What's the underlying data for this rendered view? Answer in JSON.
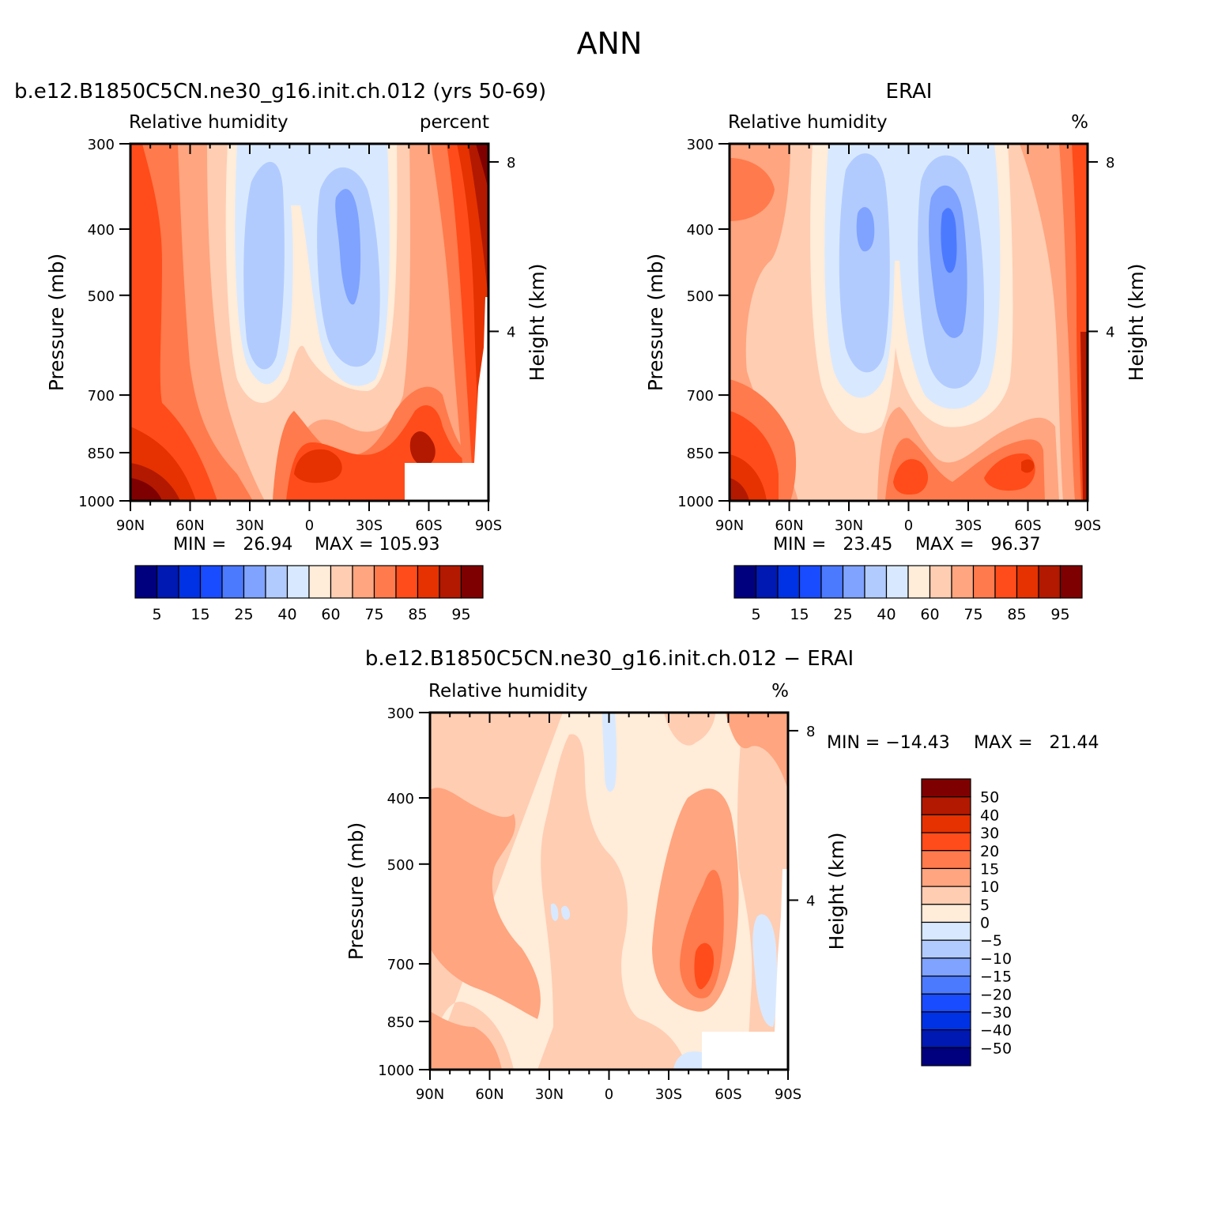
{
  "figure": {
    "title": "ANN"
  },
  "colors": {
    "rh_scale": [
      "#00007f",
      "#0019b2",
      "#0032e5",
      "#1a4cff",
      "#4c7aff",
      "#7fa3ff",
      "#b2cbff",
      "#d8e9ff",
      "#ffecd9",
      "#ffcdb2",
      "#ffa57f",
      "#ff7a4c",
      "#ff4c1a",
      "#e53200",
      "#b21900",
      "#7f0000"
    ],
    "diff_scale": [
      "#00007f",
      "#0019b2",
      "#0032e5",
      "#1a4cff",
      "#4c7aff",
      "#7fa3ff",
      "#b2cbff",
      "#d8e9ff",
      "#ffecd9",
      "#ffcdb2",
      "#ffa57f",
      "#ff7a4c",
      "#ff4c1a",
      "#e53200",
      "#b21900",
      "#7f0000"
    ]
  },
  "chart_data": [
    {
      "type": "heatmap",
      "title": "b.e12.B1850C5CN.ne30_g16.init.ch.012 (yrs 50-69)",
      "subtitle_left": "Relative humidity",
      "subtitle_right": "percent",
      "ylabel": "Pressure (mb)",
      "ylabel_right": "Height (km)",
      "x_ticks": [
        "90N",
        "60N",
        "30N",
        "0",
        "30S",
        "60S",
        "90S"
      ],
      "x_values": [
        90,
        60,
        30,
        0,
        -30,
        -60,
        -90
      ],
      "xlim": [
        90,
        -90
      ],
      "y_ticks": [
        "300",
        "400",
        "500",
        "700",
        "850",
        "1000"
      ],
      "y_values": [
        300,
        400,
        500,
        700,
        850,
        1000
      ],
      "ylim": [
        1000,
        300
      ],
      "y_scale": "log",
      "y_right_ticks": [
        "8",
        "4"
      ],
      "y_right_values": [
        8,
        4
      ],
      "min_text": "MIN =   26.94",
      "max_text": "MAX = 105.93",
      "min": 26.94,
      "max": 105.93,
      "colorbar_labels": [
        "5",
        "15",
        "25",
        "40",
        "60",
        "75",
        "85",
        "95"
      ],
      "contour_levels": [
        5,
        10,
        15,
        20,
        25,
        30,
        40,
        50,
        60,
        70,
        75,
        80,
        85,
        90,
        95
      ]
    },
    {
      "type": "heatmap",
      "title": "ERAI",
      "subtitle_left": "Relative humidity",
      "subtitle_right": "%",
      "ylabel": "Pressure (mb)",
      "ylabel_right": "Height (km)",
      "x_ticks": [
        "90N",
        "60N",
        "30N",
        "0",
        "30S",
        "60S",
        "90S"
      ],
      "x_values": [
        90,
        60,
        30,
        0,
        -30,
        -60,
        -90
      ],
      "xlim": [
        90,
        -90
      ],
      "y_ticks": [
        "300",
        "400",
        "500",
        "700",
        "850",
        "1000"
      ],
      "y_values": [
        300,
        400,
        500,
        700,
        850,
        1000
      ],
      "ylim": [
        1000,
        300
      ],
      "y_scale": "log",
      "y_right_ticks": [
        "8",
        "4"
      ],
      "y_right_values": [
        8,
        4
      ],
      "min_text": "MIN =   23.45",
      "max_text": "MAX =   96.37",
      "min": 23.45,
      "max": 96.37,
      "colorbar_labels": [
        "5",
        "15",
        "25",
        "40",
        "60",
        "75",
        "85",
        "95"
      ],
      "contour_levels": [
        5,
        10,
        15,
        20,
        25,
        30,
        40,
        50,
        60,
        70,
        75,
        80,
        85,
        90,
        95
      ]
    },
    {
      "type": "heatmap",
      "title": "b.e12.B1850C5CN.ne30_g16.init.ch.012 − ERAI",
      "subtitle_left": "Relative humidity",
      "subtitle_right": "%",
      "ylabel": "Pressure (mb)",
      "ylabel_right": "Height (km)",
      "x_ticks": [
        "90N",
        "60N",
        "30N",
        "0",
        "30S",
        "60S",
        "90S"
      ],
      "x_values": [
        90,
        60,
        30,
        0,
        -30,
        -60,
        -90
      ],
      "xlim": [
        90,
        -90
      ],
      "y_ticks": [
        "300",
        "400",
        "500",
        "700",
        "850",
        "1000"
      ],
      "y_values": [
        300,
        400,
        500,
        700,
        850,
        1000
      ],
      "ylim": [
        1000,
        300
      ],
      "y_scale": "log",
      "y_right_ticks": [
        "8",
        "4"
      ],
      "y_right_values": [
        8,
        4
      ],
      "min_text": "MIN = −14.43",
      "max_text": "MAX =   21.44",
      "min": -14.43,
      "max": 21.44,
      "colorbar_labels": [
        "50",
        "40",
        "30",
        "20",
        "15",
        "10",
        "5",
        "0",
        "−5",
        "−10",
        "−15",
        "−20",
        "−30",
        "−40",
        "−50"
      ],
      "contour_levels": [
        -50,
        -40,
        -30,
        -20,
        -15,
        -10,
        -5,
        0,
        5,
        10,
        15,
        20,
        30,
        40,
        50
      ]
    }
  ]
}
